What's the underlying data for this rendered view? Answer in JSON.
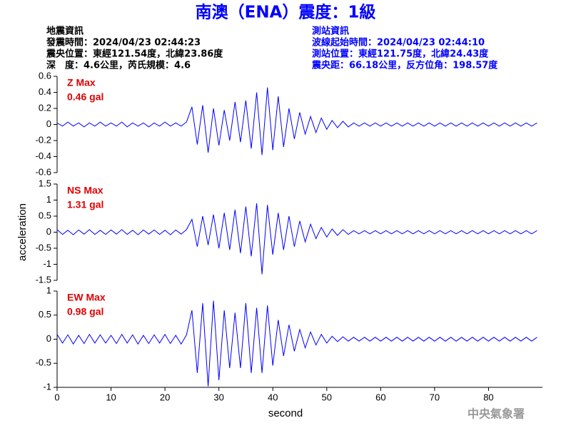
{
  "header": {
    "title": "南澳（ENA）震度：1級",
    "left": [
      "地震資訊",
      "發震時間：2024/04/23 02:44:23",
      "震央位置：東經121.54度，北緯23.86度",
      "深　度：4.6公里，芮氏規模：4.6"
    ],
    "right": [
      "測站資訊",
      "波線起始時間：2024/04/23 02:44:10",
      "測站位置：東經121.75度，北緯24.43度",
      "震央距：66.18公里，反方位角：198.57度"
    ],
    "footer": "中央氣象署"
  },
  "chart_data": [
    {
      "type": "line",
      "color": "#0000ff",
      "annotations": [
        "Z Max",
        "0.46 gal"
      ],
      "xlim": [
        0,
        90
      ],
      "ylim": [
        -0.6,
        0.6
      ],
      "yticks": [
        -0.6,
        -0.4,
        -0.2,
        0,
        0.2,
        0.4,
        0.6
      ],
      "x": [
        0,
        1,
        2,
        3,
        4,
        5,
        6,
        7,
        8,
        9,
        10,
        11,
        12,
        13,
        14,
        15,
        16,
        17,
        18,
        19,
        20,
        21,
        22,
        23,
        24,
        25,
        26,
        27,
        28,
        29,
        30,
        31,
        32,
        33,
        34,
        35,
        36,
        37,
        38,
        39,
        40,
        41,
        42,
        43,
        44,
        45,
        46,
        47,
        48,
        49,
        50,
        51,
        52,
        53,
        54,
        55,
        56,
        57,
        58,
        59,
        60,
        61,
        62,
        63,
        64,
        65,
        66,
        67,
        68,
        69,
        70,
        71,
        72,
        73,
        74,
        75,
        76,
        77,
        78,
        79,
        80,
        81,
        82,
        83,
        84,
        85,
        86,
        87,
        88,
        89
      ],
      "values": [
        0.02,
        -0.02,
        0.03,
        -0.02,
        0.02,
        -0.03,
        0.02,
        -0.02,
        0.03,
        -0.02,
        0.02,
        -0.02,
        0.03,
        -0.03,
        0.02,
        -0.02,
        0.02,
        -0.03,
        0.02,
        -0.02,
        0.03,
        -0.02,
        0.02,
        -0.02,
        0.03,
        0.22,
        -0.25,
        0.24,
        -0.35,
        0.2,
        -0.26,
        0.18,
        -0.2,
        0.28,
        -0.22,
        0.3,
        -0.3,
        0.4,
        -0.38,
        0.46,
        -0.32,
        0.35,
        -0.28,
        0.2,
        -0.18,
        0.15,
        -0.12,
        0.1,
        -0.1,
        0.08,
        -0.06,
        0.05,
        -0.04,
        0.04,
        -0.03,
        0.02,
        -0.02,
        0.02,
        -0.02,
        0.02,
        -0.02,
        0.02,
        -0.02,
        0.02,
        -0.02,
        0.02,
        -0.02,
        0.02,
        -0.02,
        0.02,
        -0.02,
        0.02,
        -0.02,
        0.02,
        -0.02,
        0.02,
        -0.02,
        0.02,
        -0.02,
        0.02,
        -0.02,
        0.02,
        -0.02,
        0.02,
        -0.02,
        0.02,
        -0.02,
        0.02,
        -0.02,
        0.02
      ]
    },
    {
      "type": "line",
      "color": "#0000ff",
      "annotations": [
        "NS Max",
        "1.31 gal"
      ],
      "ylabel": "acceleration",
      "xlim": [
        0,
        90
      ],
      "ylim": [
        -1.5,
        1.5
      ],
      "yticks": [
        -1.5,
        -1,
        -0.5,
        0,
        0.5,
        1,
        1.5
      ],
      "x": [
        0,
        1,
        2,
        3,
        4,
        5,
        6,
        7,
        8,
        9,
        10,
        11,
        12,
        13,
        14,
        15,
        16,
        17,
        18,
        19,
        20,
        21,
        22,
        23,
        24,
        25,
        26,
        27,
        28,
        29,
        30,
        31,
        32,
        33,
        34,
        35,
        36,
        37,
        38,
        39,
        40,
        41,
        42,
        43,
        44,
        45,
        46,
        47,
        48,
        49,
        50,
        51,
        52,
        53,
        54,
        55,
        56,
        57,
        58,
        59,
        60,
        61,
        62,
        63,
        64,
        65,
        66,
        67,
        68,
        69,
        70,
        71,
        72,
        73,
        74,
        75,
        76,
        77,
        78,
        79,
        80,
        81,
        82,
        83,
        84,
        85,
        86,
        87,
        88,
        89
      ],
      "values": [
        0.08,
        -0.07,
        0.06,
        -0.08,
        0.07,
        -0.06,
        0.08,
        -0.07,
        0.06,
        -0.07,
        0.07,
        -0.06,
        0.08,
        -0.07,
        0.06,
        -0.08,
        0.07,
        -0.06,
        0.07,
        -0.07,
        0.06,
        -0.08,
        0.07,
        -0.06,
        0.08,
        0.4,
        -0.45,
        0.5,
        -0.4,
        0.55,
        -0.5,
        0.6,
        -0.55,
        0.7,
        -0.65,
        0.8,
        -0.75,
        0.9,
        -1.31,
        0.85,
        -0.7,
        0.6,
        -0.55,
        0.5,
        -0.45,
        0.35,
        -0.3,
        0.25,
        -0.2,
        0.15,
        -0.15,
        0.1,
        -0.1,
        0.08,
        -0.07,
        0.05,
        -0.05,
        0.05,
        -0.05,
        0.05,
        -0.05,
        0.05,
        -0.05,
        0.05,
        -0.05,
        0.05,
        -0.05,
        0.05,
        -0.05,
        0.05,
        -0.05,
        0.05,
        -0.05,
        0.05,
        -0.05,
        0.05,
        -0.05,
        0.05,
        -0.05,
        0.05,
        -0.05,
        0.05,
        -0.05,
        0.05,
        -0.05,
        0.05,
        -0.05,
        0.05,
        -0.05,
        0.05
      ]
    },
    {
      "type": "line",
      "color": "#0000ff",
      "annotations": [
        "EW Max",
        "0.98 gal"
      ],
      "xlabel": "second",
      "xlim": [
        0,
        90
      ],
      "xticks": [
        0,
        10,
        20,
        30,
        40,
        50,
        60,
        70,
        80
      ],
      "ylim": [
        -1,
        1
      ],
      "yticks": [
        -1,
        -0.5,
        0,
        0.5,
        1
      ],
      "x": [
        0,
        1,
        2,
        3,
        4,
        5,
        6,
        7,
        8,
        9,
        10,
        11,
        12,
        13,
        14,
        15,
        16,
        17,
        18,
        19,
        20,
        21,
        22,
        23,
        24,
        25,
        26,
        27,
        28,
        29,
        30,
        31,
        32,
        33,
        34,
        35,
        36,
        37,
        38,
        39,
        40,
        41,
        42,
        43,
        44,
        45,
        46,
        47,
        48,
        49,
        50,
        51,
        52,
        53,
        54,
        55,
        56,
        57,
        58,
        59,
        60,
        61,
        62,
        63,
        64,
        65,
        66,
        67,
        68,
        69,
        70,
        71,
        72,
        73,
        74,
        75,
        76,
        77,
        78,
        79,
        80,
        81,
        82,
        83,
        84,
        85,
        86,
        87,
        88,
        89
      ],
      "values": [
        0.1,
        -0.08,
        0.09,
        -0.1,
        0.08,
        -0.09,
        0.1,
        -0.08,
        0.09,
        -0.08,
        0.08,
        -0.09,
        0.1,
        -0.08,
        0.09,
        -0.1,
        0.08,
        -0.09,
        0.09,
        -0.08,
        0.1,
        -0.09,
        0.08,
        -0.1,
        0.09,
        0.6,
        -0.7,
        0.75,
        -0.98,
        0.8,
        -0.85,
        0.6,
        -0.6,
        0.55,
        -0.6,
        0.75,
        -0.7,
        0.65,
        -0.7,
        0.7,
        -0.55,
        0.4,
        -0.35,
        0.3,
        -0.25,
        0.2,
        -0.18,
        0.15,
        -0.12,
        0.1,
        -0.08,
        0.06,
        -0.05,
        0.05,
        -0.04,
        0.04,
        -0.04,
        0.04,
        -0.04,
        0.04,
        -0.04,
        0.04,
        -0.04,
        0.04,
        -0.04,
        0.04,
        -0.04,
        0.04,
        -0.04,
        0.04,
        -0.04,
        0.04,
        -0.04,
        0.04,
        -0.04,
        0.04,
        -0.04,
        0.04,
        -0.04,
        0.04,
        -0.04,
        0.04,
        -0.04,
        0.04,
        -0.04,
        0.04,
        -0.04,
        0.04,
        -0.04,
        0.04
      ]
    }
  ]
}
